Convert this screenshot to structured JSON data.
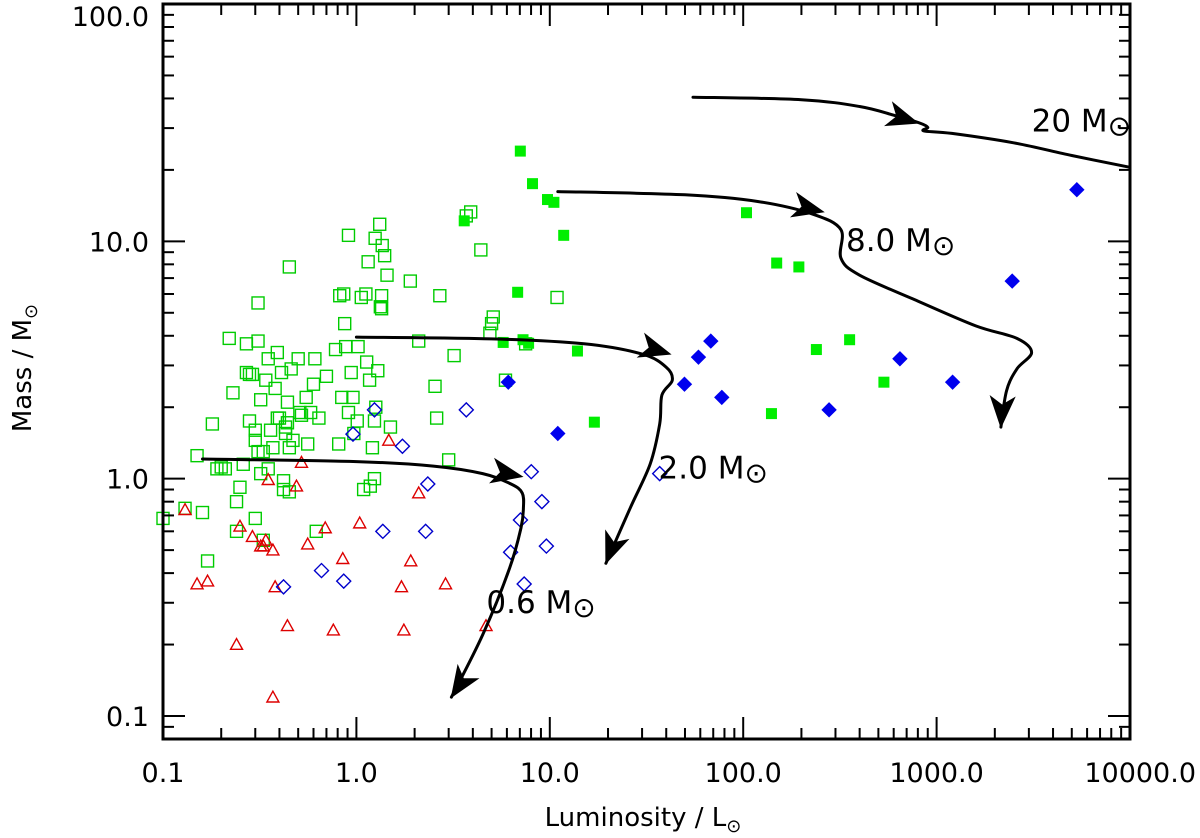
{
  "chart_data": {
    "type": "scatter",
    "xlabel": "Luminosity / L",
    "xlabel_sub": "⊙",
    "ylabel": "Mass / M",
    "ylabel_sub": "⊙",
    "xscale": "log",
    "yscale": "log",
    "xlim": [
      0.1,
      10000
    ],
    "ylim": [
      0.08,
      100
    ],
    "x_ticks": [
      {
        "value": 0.1,
        "label": "0.1"
      },
      {
        "value": 1,
        "label": "1.0"
      },
      {
        "value": 10,
        "label": "10.0"
      },
      {
        "value": 100,
        "label": "100.0"
      },
      {
        "value": 1000,
        "label": "1000.0"
      },
      {
        "value": 10000,
        "label": "10000.0"
      }
    ],
    "y_ticks": [
      {
        "value": 0.1,
        "label": "0.1"
      },
      {
        "value": 1,
        "label": "1.0"
      },
      {
        "value": 10,
        "label": "10.0"
      },
      {
        "value": 100,
        "label": "100.0"
      }
    ],
    "series": [
      {
        "name": "green-open-squares",
        "marker": "square",
        "filled": false,
        "color": "#00cc00",
        "points": [
          [
            0.13,
            0.75
          ],
          [
            0.16,
            0.72
          ],
          [
            0.17,
            0.45
          ],
          [
            0.15,
            1.25
          ],
          [
            0.18,
            1.7
          ],
          [
            0.19,
            1.1
          ],
          [
            0.2,
            1.12
          ],
          [
            0.21,
            1.1
          ],
          [
            0.22,
            3.9
          ],
          [
            0.23,
            2.3
          ],
          [
            0.24,
            0.6
          ],
          [
            0.24,
            0.8
          ],
          [
            0.25,
            0.92
          ],
          [
            0.26,
            1.15
          ],
          [
            0.27,
            3.7
          ],
          [
            0.27,
            2.8
          ],
          [
            0.28,
            1.75
          ],
          [
            0.28,
            2.75
          ],
          [
            0.29,
            2.75
          ],
          [
            0.3,
            1.6
          ],
          [
            0.3,
            1.45
          ],
          [
            0.3,
            0.68
          ],
          [
            0.31,
            1.3
          ],
          [
            0.31,
            3.8
          ],
          [
            0.31,
            5.5
          ],
          [
            0.32,
            2.15
          ],
          [
            0.32,
            1.05
          ],
          [
            0.33,
            1.3
          ],
          [
            0.33,
            0.55
          ],
          [
            0.34,
            2.6
          ],
          [
            0.35,
            1.1
          ],
          [
            0.35,
            3.2
          ],
          [
            0.36,
            1.6
          ],
          [
            0.37,
            1.35
          ],
          [
            0.38,
            2.4
          ],
          [
            0.39,
            1.8
          ],
          [
            0.39,
            3.4
          ],
          [
            0.4,
            1.8
          ],
          [
            0.41,
            2.8
          ],
          [
            0.42,
            0.9
          ],
          [
            0.42,
            0.98
          ],
          [
            0.43,
            1.55
          ],
          [
            0.43,
            1.65
          ],
          [
            0.44,
            1.72
          ],
          [
            0.44,
            2.1
          ],
          [
            0.45,
            1.35
          ],
          [
            0.45,
            0.88
          ],
          [
            0.45,
            7.8
          ],
          [
            0.46,
            2.9
          ],
          [
            0.47,
            1.45
          ],
          [
            0.5,
            3.2
          ],
          [
            0.51,
            1.9
          ],
          [
            0.52,
            1.85
          ],
          [
            0.55,
            2.2
          ],
          [
            0.56,
            1.4
          ],
          [
            0.58,
            1.9
          ],
          [
            0.6,
            2.5
          ],
          [
            0.61,
            3.2
          ],
          [
            0.62,
            0.6
          ],
          [
            0.64,
            1.8
          ],
          [
            0.7,
            2.7
          ],
          [
            0.78,
            3.5
          ],
          [
            0.81,
            1.4
          ],
          [
            0.82,
            5.9
          ],
          [
            0.84,
            2.2
          ],
          [
            0.86,
            6.0
          ],
          [
            0.87,
            4.5
          ],
          [
            0.88,
            3.6
          ],
          [
            0.91,
            10.6
          ],
          [
            0.91,
            1.9
          ],
          [
            0.94,
            2.8
          ],
          [
            0.96,
            2.2
          ],
          [
            0.97,
            1.55
          ],
          [
            1.01,
            1.75
          ],
          [
            1.02,
            3.6
          ],
          [
            1.06,
            5.8
          ],
          [
            1.09,
            0.9
          ],
          [
            1.12,
            6.0
          ],
          [
            1.13,
            3.1
          ],
          [
            1.15,
            8.2
          ],
          [
            1.17,
            2.6
          ],
          [
            1.18,
            0.93
          ],
          [
            1.21,
            1.35
          ],
          [
            1.24,
            1.75
          ],
          [
            1.24,
            1.0
          ],
          [
            1.25,
            10.3
          ],
          [
            1.26,
            2.0
          ],
          [
            1.29,
            2.85
          ],
          [
            1.32,
            11.8
          ],
          [
            1.33,
            5.3
          ],
          [
            1.35,
            5.9
          ],
          [
            1.35,
            5.2
          ],
          [
            1.36,
            9.6
          ],
          [
            1.4,
            8.7
          ],
          [
            1.44,
            7.2
          ],
          [
            1.5,
            1.65
          ],
          [
            1.9,
            6.8
          ],
          [
            2.1,
            3.8
          ],
          [
            2.55,
            2.45
          ],
          [
            2.6,
            1.8
          ],
          [
            2.7,
            5.9
          ],
          [
            3.0,
            1.2
          ],
          [
            3.2,
            3.3
          ],
          [
            3.9,
            13.3
          ],
          [
            3.7,
            12.8
          ],
          [
            4.4,
            9.2
          ],
          [
            4.9,
            4.1
          ],
          [
            5.0,
            4.5
          ],
          [
            5.1,
            4.8
          ],
          [
            5.9,
            2.6
          ],
          [
            7.5,
            3.7
          ],
          [
            10.9,
            5.8
          ],
          [
            0.1,
            0.68
          ]
        ]
      },
      {
        "name": "red-open-triangles",
        "marker": "triangle",
        "filled": false,
        "color": "#dd0000",
        "points": [
          [
            0.13,
            0.74
          ],
          [
            0.15,
            0.36
          ],
          [
            0.17,
            0.37
          ],
          [
            0.24,
            0.2
          ],
          [
            0.25,
            0.63
          ],
          [
            0.29,
            0.57
          ],
          [
            0.32,
            0.52
          ],
          [
            0.33,
            0.52
          ],
          [
            0.34,
            0.55
          ],
          [
            0.35,
            0.99
          ],
          [
            0.37,
            0.5
          ],
          [
            0.37,
            0.12
          ],
          [
            0.38,
            0.35
          ],
          [
            0.44,
            0.24
          ],
          [
            0.49,
            0.93
          ],
          [
            0.52,
            1.17
          ],
          [
            0.56,
            0.53
          ],
          [
            0.69,
            0.62
          ],
          [
            0.76,
            0.23
          ],
          [
            0.85,
            0.46
          ],
          [
            1.04,
            0.65
          ],
          [
            1.47,
            1.45
          ],
          [
            1.71,
            0.35
          ],
          [
            1.76,
            0.23
          ],
          [
            1.91,
            0.45
          ],
          [
            2.1,
            0.87
          ],
          [
            2.89,
            0.36
          ],
          [
            4.68,
            0.24
          ]
        ]
      },
      {
        "name": "blue-open-diamonds",
        "marker": "diamond",
        "filled": false,
        "color": "#0000cc",
        "points": [
          [
            0.42,
            0.35
          ],
          [
            0.66,
            0.41
          ],
          [
            0.86,
            0.37
          ],
          [
            0.96,
            1.54
          ],
          [
            1.24,
            1.95
          ],
          [
            1.37,
            0.6
          ],
          [
            1.73,
            1.37
          ],
          [
            2.34,
            0.95
          ],
          [
            2.28,
            0.6
          ],
          [
            3.7,
            1.95
          ],
          [
            6.27,
            0.49
          ],
          [
            7.05,
            0.67
          ],
          [
            7.37,
            0.36
          ],
          [
            8.02,
            1.07
          ],
          [
            9.1,
            0.8
          ],
          [
            9.6,
            0.52
          ],
          [
            37.0,
            1.05
          ]
        ]
      },
      {
        "name": "green-filled-squares",
        "marker": "square",
        "filled": true,
        "color": "#00ee00",
        "points": [
          [
            3.61,
            12.2
          ],
          [
            5.74,
            3.75
          ],
          [
            6.82,
            6.1
          ],
          [
            7.04,
            24.0
          ],
          [
            7.27,
            3.85
          ],
          [
            7.77,
            3.72
          ],
          [
            8.14,
            17.5
          ],
          [
            9.73,
            15.0
          ],
          [
            10.5,
            14.6
          ],
          [
            11.8,
            10.6
          ],
          [
            13.9,
            3.45
          ],
          [
            17.0,
            1.73
          ],
          [
            104,
            13.2
          ],
          [
            149,
            8.1
          ],
          [
            140,
            1.88
          ],
          [
            194,
            7.8
          ],
          [
            239,
            3.5
          ],
          [
            355,
            3.85
          ],
          [
            534,
            2.55
          ]
        ]
      },
      {
        "name": "blue-filled-diamonds",
        "marker": "diamond",
        "filled": true,
        "color": "#0000ee",
        "points": [
          [
            6.1,
            2.55
          ],
          [
            11.0,
            1.55
          ],
          [
            49.7,
            2.5
          ],
          [
            58.7,
            3.25
          ],
          [
            68.0,
            3.8
          ],
          [
            77.5,
            2.2
          ],
          [
            278,
            1.95
          ],
          [
            646,
            3.2
          ],
          [
            1210,
            2.55
          ],
          [
            2460,
            6.8
          ],
          [
            5310,
            16.5
          ]
        ]
      }
    ],
    "tracks": [
      {
        "name": "track-0.6",
        "label": "0.6 M",
        "label_sub": "⊙",
        "label_at": [
          4.7,
          0.272
        ],
        "points": [
          [
            0.16,
            1.21
          ],
          [
            1.0,
            1.18
          ],
          [
            2.5,
            1.13
          ],
          [
            4.5,
            1.05
          ],
          [
            6.3,
            0.95
          ],
          [
            7.2,
            0.87
          ],
          [
            7.3,
            0.75
          ],
          [
            7.1,
            0.62
          ],
          [
            6.2,
            0.42
          ],
          [
            4.5,
            0.22
          ],
          [
            3.1,
            0.12
          ]
        ]
      },
      {
        "name": "track-2.0",
        "label": "2.0 M",
        "label_sub": "⊙",
        "label_at": [
          36.5,
          1.0
        ],
        "points": [
          [
            1.0,
            3.95
          ],
          [
            5.0,
            3.88
          ],
          [
            15.0,
            3.7
          ],
          [
            30.0,
            3.35
          ],
          [
            40.0,
            2.95
          ],
          [
            43.0,
            2.6
          ],
          [
            38.0,
            2.25
          ],
          [
            37.0,
            1.7
          ],
          [
            33.0,
            1.15
          ],
          [
            26.0,
            0.75
          ],
          [
            19.5,
            0.44
          ]
        ]
      },
      {
        "name": "track-8.0",
        "label": "8.0 M",
        "label_sub": "⊙",
        "label_at": [
          340,
          9.1
        ],
        "points": [
          [
            11.0,
            16.2
          ],
          [
            50.0,
            15.7
          ],
          [
            120.0,
            14.7
          ],
          [
            230.0,
            13.0
          ],
          [
            320.0,
            11.2
          ],
          [
            320.0,
            8.5
          ],
          [
            400.0,
            7.2
          ],
          [
            800.0,
            5.6
          ],
          [
            1600.0,
            4.4
          ],
          [
            2600.0,
            3.9
          ],
          [
            3100.0,
            3.4
          ],
          [
            2600.0,
            2.9
          ],
          [
            2300.0,
            2.35
          ],
          [
            2150.0,
            1.65
          ]
        ]
      },
      {
        "name": "track-20",
        "label": "20 M",
        "label_sub": "⊙",
        "label_at": [
          3100,
          29.0
        ],
        "points": [
          [
            55,
            40.5
          ],
          [
            200,
            39.5
          ],
          [
            400,
            37.0
          ],
          [
            600,
            34.0
          ],
          [
            820,
            31.5
          ],
          [
            900,
            30.2
          ],
          [
            860,
            29.2
          ],
          [
            1200,
            28.5
          ],
          [
            2500,
            26.0
          ],
          [
            5000,
            23.0
          ],
          [
            10000,
            20.5
          ]
        ]
      }
    ],
    "arrows": [
      {
        "name": "arrow-0.6-horizontal",
        "tip": [
          7.2,
          1.02
        ],
        "tail": [
          4.5,
          1.1
        ]
      },
      {
        "name": "arrow-0.6-down",
        "tip": [
          3.1,
          0.12
        ],
        "tail": [
          4.1,
          0.17
        ]
      },
      {
        "name": "arrow-2.0-horizontal",
        "tip": [
          42.0,
          3.35
        ],
        "tail": [
          25.0,
          3.8
        ]
      },
      {
        "name": "arrow-2.0-down",
        "tip": [
          19.5,
          0.44
        ],
        "tail": [
          23.0,
          0.62
        ]
      },
      {
        "name": "arrow-8.0-horizontal",
        "tip": [
          260.0,
          13.3
        ],
        "tail": [
          140.0,
          15.0
        ]
      },
      {
        "name": "arrow-8.0-down",
        "tip": [
          2150.0,
          1.65
        ],
        "tail": [
          2200.0,
          2.3
        ]
      },
      {
        "name": "arrow-20-horizontal",
        "tip": [
          800.0,
          31.5
        ],
        "tail": [
          450.0,
          36.5
        ]
      }
    ]
  }
}
